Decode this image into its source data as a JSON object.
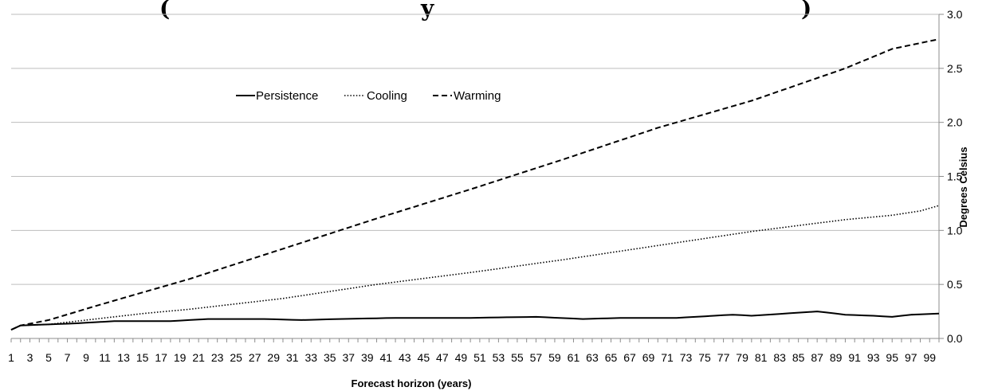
{
  "chart_data": {
    "type": "line",
    "title": "(",
    "title_tail": ")",
    "title_partial": "y",
    "xlabel": "Forecast horizon (years)",
    "ylabel": "Degrees Celsius",
    "ylim": [
      0,
      3.0
    ],
    "yticks": [
      "0.0",
      "0.5",
      "1.0",
      "1.5",
      "2.0",
      "2.5",
      "3.0"
    ],
    "yaxis_position": "right",
    "grid": true,
    "legend_position": "top-left",
    "x_label_step": 2,
    "x_start": 1,
    "series": [
      {
        "name": "Persistence",
        "style": "solid",
        "color": "#000000",
        "anchors": [
          [
            1,
            0.08
          ],
          [
            2,
            0.12
          ],
          [
            5,
            0.13
          ],
          [
            8,
            0.14
          ],
          [
            12,
            0.16
          ],
          [
            18,
            0.16
          ],
          [
            22,
            0.18
          ],
          [
            28,
            0.18
          ],
          [
            32,
            0.17
          ],
          [
            36,
            0.18
          ],
          [
            42,
            0.19
          ],
          [
            50,
            0.19
          ],
          [
            57,
            0.2
          ],
          [
            62,
            0.18
          ],
          [
            66,
            0.19
          ],
          [
            72,
            0.19
          ],
          [
            78,
            0.22
          ],
          [
            80,
            0.21
          ],
          [
            87,
            0.25
          ],
          [
            90,
            0.22
          ],
          [
            93,
            0.21
          ],
          [
            95,
            0.2
          ],
          [
            97,
            0.22
          ],
          [
            100,
            0.23
          ]
        ]
      },
      {
        "name": "Cooling",
        "style": "dotted",
        "color": "#000000",
        "anchors": [
          [
            1,
            0.08
          ],
          [
            2,
            0.12
          ],
          [
            5,
            0.13
          ],
          [
            10,
            0.18
          ],
          [
            15,
            0.23
          ],
          [
            20,
            0.27
          ],
          [
            25,
            0.32
          ],
          [
            30,
            0.37
          ],
          [
            40,
            0.5
          ],
          [
            50,
            0.61
          ],
          [
            60,
            0.73
          ],
          [
            70,
            0.86
          ],
          [
            80,
            0.99
          ],
          [
            90,
            1.1
          ],
          [
            95,
            1.14
          ],
          [
            98,
            1.18
          ],
          [
            100,
            1.23
          ]
        ]
      },
      {
        "name": "Warming",
        "style": "dashed",
        "color": "#000000",
        "anchors": [
          [
            1,
            0.08
          ],
          [
            2,
            0.12
          ],
          [
            5,
            0.17
          ],
          [
            10,
            0.3
          ],
          [
            20,
            0.55
          ],
          [
            30,
            0.83
          ],
          [
            40,
            1.11
          ],
          [
            50,
            1.38
          ],
          [
            60,
            1.66
          ],
          [
            70,
            1.95
          ],
          [
            80,
            2.2
          ],
          [
            90,
            2.5
          ],
          [
            95,
            2.68
          ],
          [
            100,
            2.77
          ]
        ]
      }
    ]
  }
}
